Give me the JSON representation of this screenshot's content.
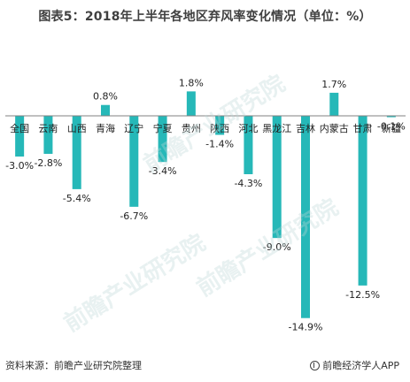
{
  "title": "图表5：2018年上半年各地区弃风率变化情况（单位：%）",
  "source": "资料来源：前瞻产业研究院整理",
  "brand": "前瞻经济学人APP",
  "watermark": "前瞻产业研究院",
  "colors": {
    "bar": "#26B8B8",
    "axis": "#808080",
    "text": "#222222"
  },
  "chart_data": {
    "type": "bar",
    "categories": [
      "全国",
      "云南",
      "山西",
      "青海",
      "辽宁",
      "宁夏",
      "贵州",
      "陕西",
      "河北",
      "黑龙江",
      "吉林",
      "内蒙古",
      "甘肃",
      "新疆"
    ],
    "values": [
      -3.0,
      -2.8,
      -5.4,
      0.8,
      -6.7,
      -3.4,
      1.8,
      -1.4,
      -4.3,
      -9.0,
      -14.9,
      1.7,
      -12.5,
      -0.1
    ],
    "labels": [
      "-3.0%",
      "-2.8%",
      "-5.4%",
      "0.8%",
      "-6.7%",
      "-3.4%",
      "1.8%",
      "-1.4%",
      "-4.3%",
      "-9.0%",
      "-14.9%",
      "1.7%",
      "-12.5%",
      "-0.1%"
    ],
    "title": "图表5：2018年上半年各地区弃风率变化情况（单位：%）",
    "xlabel": "",
    "ylabel": "",
    "ylim": [
      -15,
      2
    ],
    "grid": false,
    "legend": false
  }
}
